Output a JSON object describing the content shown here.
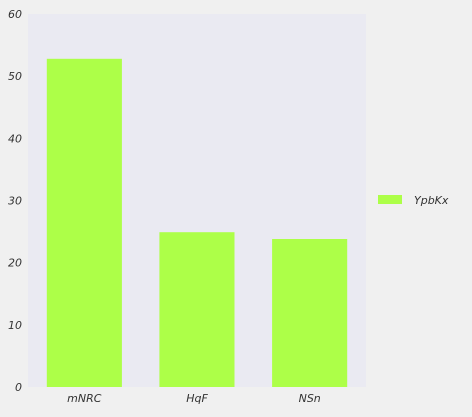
{
  "chart_data": {
    "type": "bar",
    "categories": [
      "mNRC",
      "HqF",
      "NSn"
    ],
    "series": [
      {
        "name": "YpbKx",
        "values": [
          52.8,
          24.9,
          23.8
        ]
      }
    ],
    "yticks": [
      "0",
      "10",
      "20",
      "30",
      "40",
      "50",
      "60"
    ],
    "ylim": [
      0,
      60
    ],
    "grid": false,
    "legend_position": "right",
    "colors": {
      "bar": "#adff48",
      "plot_background": "#eaeaf2",
      "page_background": "#f0f0f0",
      "text": "#333333"
    }
  }
}
